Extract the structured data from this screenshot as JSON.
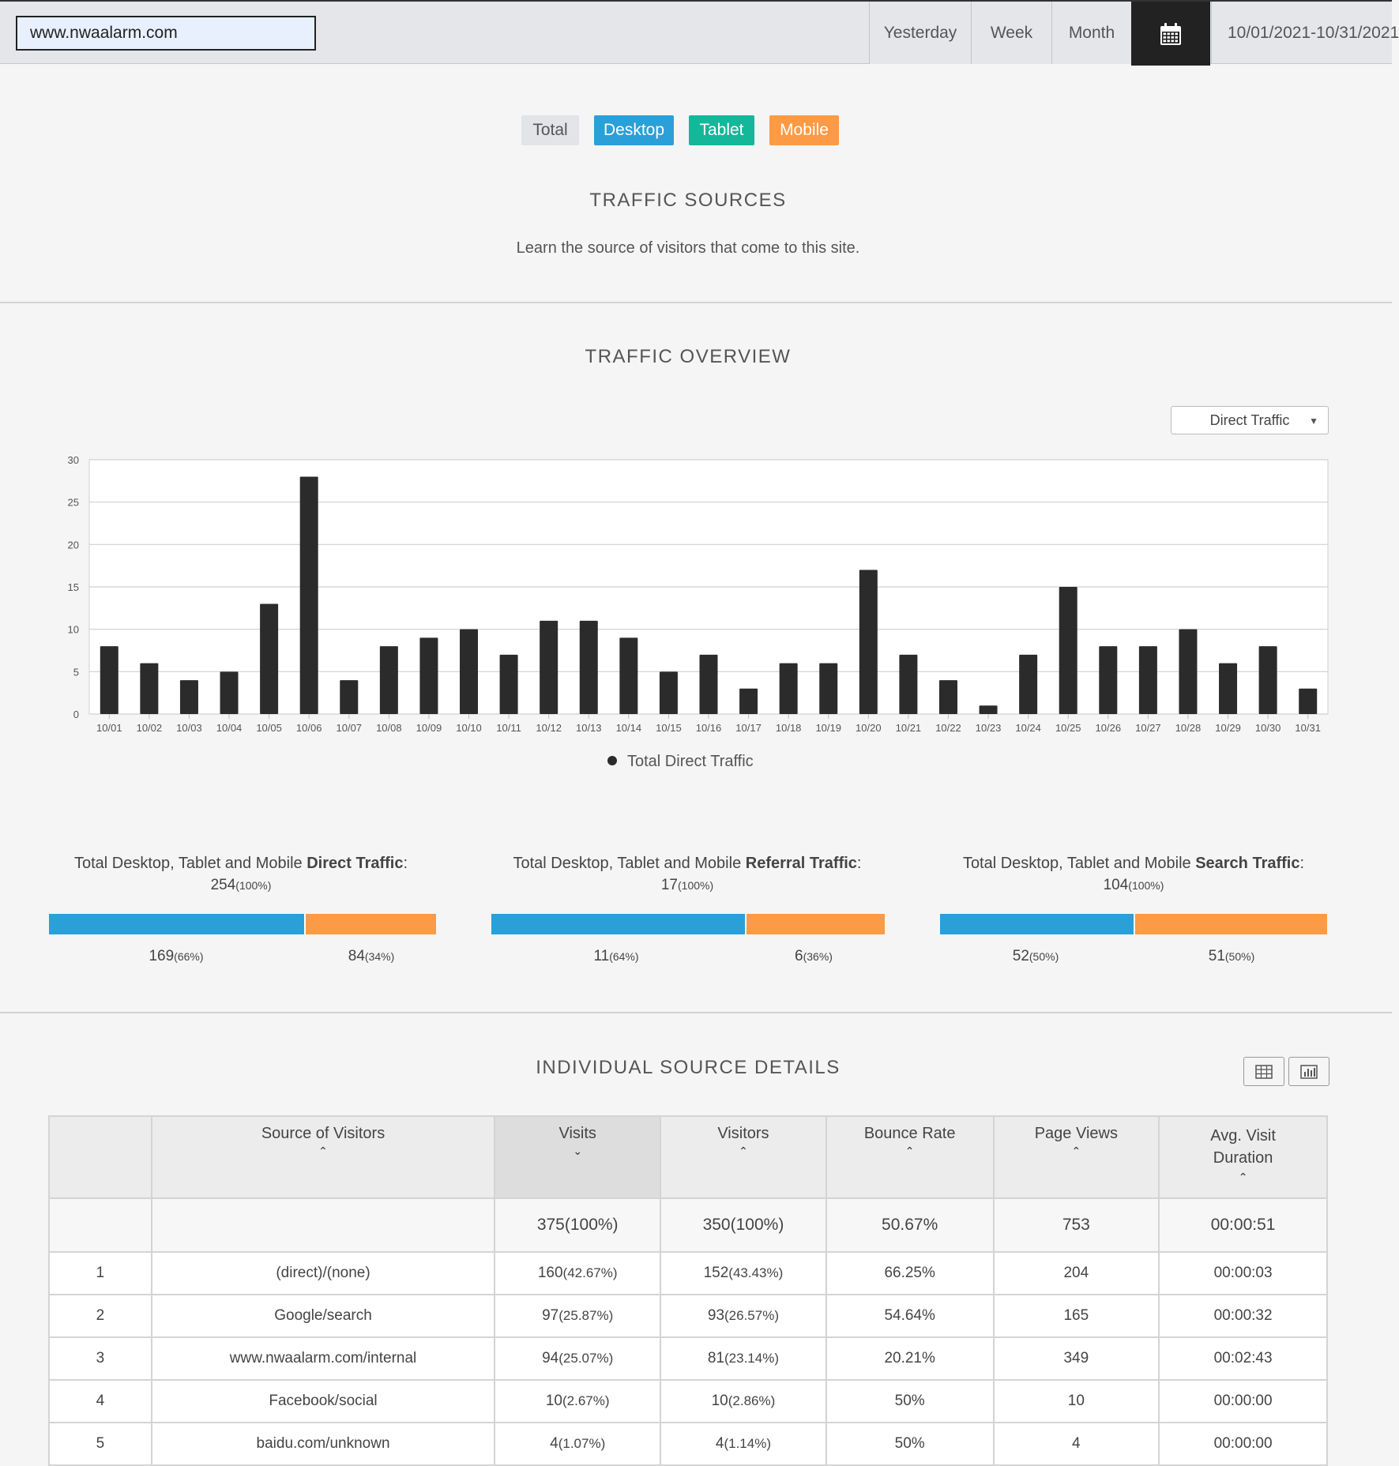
{
  "header": {
    "site_url": "www.nwaalarm.com",
    "ranges": [
      "Yesterday",
      "Week",
      "Month"
    ],
    "calendar_icon": "calendar-icon",
    "date_range": "10/01/2021-10/31/2021"
  },
  "devices": {
    "total": "Total",
    "desktop": "Desktop",
    "tablet": "Tablet",
    "mobile": "Mobile",
    "colors": {
      "desktop": "#2b9fd8",
      "tablet": "#14b79a",
      "mobile": "#fd9a45"
    }
  },
  "sources_section": {
    "title": "TRAFFIC  SOURCES",
    "subtitle": "Learn the source of visitors that come to this site."
  },
  "overview_section": {
    "title": "TRAFFIC  OVERVIEW",
    "select_value": "Direct Traffic"
  },
  "chart_data": {
    "type": "bar",
    "categories": [
      "10/01",
      "10/02",
      "10/03",
      "10/04",
      "10/05",
      "10/06",
      "10/07",
      "10/08",
      "10/09",
      "10/10",
      "10/11",
      "10/12",
      "10/13",
      "10/14",
      "10/15",
      "10/16",
      "10/17",
      "10/18",
      "10/19",
      "10/20",
      "10/21",
      "10/22",
      "10/23",
      "10/24",
      "10/25",
      "10/26",
      "10/27",
      "10/28",
      "10/29",
      "10/30",
      "10/31"
    ],
    "series": [
      {
        "name": "Total Direct Traffic",
        "values": [
          8,
          6,
          4,
          5,
          13,
          28,
          4,
          8,
          9,
          10,
          7,
          11,
          11,
          9,
          5,
          7,
          3,
          6,
          6,
          17,
          7,
          4,
          1,
          7,
          15,
          8,
          8,
          10,
          6,
          8,
          3
        ],
        "color": "#2b2b2b"
      }
    ],
    "yticks": [
      "0",
      "5",
      "10",
      "15",
      "20",
      "25",
      "30"
    ],
    "ylim": [
      0,
      30
    ],
    "grid": true,
    "legend_position": "bottom"
  },
  "summaries": [
    {
      "prefix": "Total Desktop, Tablet and Mobile ",
      "kind": "Direct Traffic",
      "suffix": ":",
      "total": "254",
      "total_pct": "(100%)",
      "desktop_val": "169",
      "desktop_pct": "(66%)",
      "mobile_val": "84",
      "mobile_pct": "(34%)",
      "desktop_share": 0.66
    },
    {
      "prefix": "Total Desktop, Tablet and Mobile ",
      "kind": "Referral Traffic",
      "suffix": ":",
      "total": "17",
      "total_pct": "(100%)",
      "desktop_val": "11",
      "desktop_pct": "(64%)",
      "mobile_val": "6",
      "mobile_pct": "(36%)",
      "desktop_share": 0.644
    },
    {
      "prefix": "Total Desktop, Tablet and Mobile ",
      "kind": "Search Traffic",
      "suffix": ":",
      "total": "104",
      "total_pct": "(100%)",
      "desktop_val": "52",
      "desktop_pct": "(50%)",
      "mobile_val": "51",
      "mobile_pct": "(50%)",
      "desktop_share": 0.5
    }
  ],
  "details_section": {
    "title": "INDIVIDUAL  SOURCE  DETAILS",
    "table_icon": "table-view-icon",
    "chart_icon": "chart-view-icon",
    "columns": [
      "Source of Visitors",
      "Visits",
      "Visitors",
      "Bounce Rate",
      "Page Views",
      "Avg. Visit Duration"
    ],
    "totals": {
      "visits": "375(100%)",
      "visitors": "350(100%)",
      "bounce": "50.67%",
      "pageviews": "753",
      "duration": "00:00:51"
    },
    "rows": [
      {
        "n": "1",
        "source": "(direct)/(none)",
        "visits": "160",
        "visits_pct": "(42.67%)",
        "visitors": "152",
        "visitors_pct": "(43.43%)",
        "bounce": "66.25%",
        "pageviews": "204",
        "duration": "00:00:03"
      },
      {
        "n": "2",
        "source": "Google/search",
        "visits": "97",
        "visits_pct": "(25.87%)",
        "visitors": "93",
        "visitors_pct": "(26.57%)",
        "bounce": "54.64%",
        "pageviews": "165",
        "duration": "00:00:32"
      },
      {
        "n": "3",
        "source": "www.nwaalarm.com/internal",
        "visits": "94",
        "visits_pct": "(25.07%)",
        "visitors": "81",
        "visitors_pct": "(23.14%)",
        "bounce": "20.21%",
        "pageviews": "349",
        "duration": "00:02:43"
      },
      {
        "n": "4",
        "source": "Facebook/social",
        "visits": "10",
        "visits_pct": "(2.67%)",
        "visitors": "10",
        "visitors_pct": "(2.86%)",
        "bounce": "50%",
        "pageviews": "10",
        "duration": "00:00:00"
      },
      {
        "n": "5",
        "source": "baidu.com/unknown",
        "visits": "4",
        "visits_pct": "(1.07%)",
        "visitors": "4",
        "visitors_pct": "(1.14%)",
        "bounce": "50%",
        "pageviews": "4",
        "duration": "00:00:00"
      }
    ]
  }
}
